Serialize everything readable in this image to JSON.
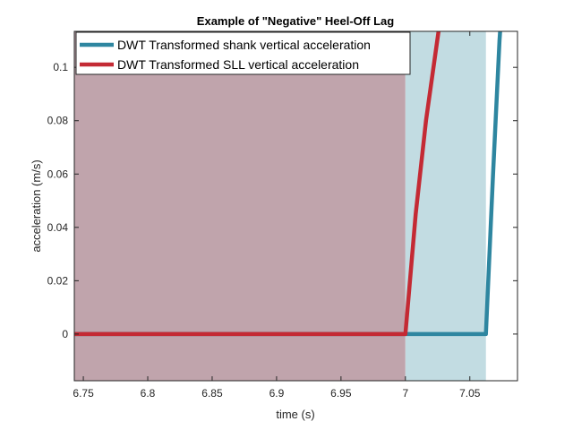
{
  "chart_data": {
    "type": "line",
    "title": "Example of \"Negative\" Heel-Off Lag",
    "xlabel": "time (s)",
    "ylabel": "acceleration (m/s)",
    "xlim": [
      6.743,
      7.087
    ],
    "ylim": [
      -0.0175,
      0.1135
    ],
    "xticks": [
      6.75,
      6.8,
      6.85,
      6.9,
      6.95,
      7,
      7.05
    ],
    "xtick_labels": [
      "6.75",
      "6.8",
      "6.85",
      "6.9",
      "6.95",
      "7",
      "7.05"
    ],
    "yticks": [
      0,
      0.02,
      0.04,
      0.06,
      0.08,
      0.1
    ],
    "ytick_labels": [
      "0",
      "0.02",
      "0.04",
      "0.06",
      "0.08",
      "0.1"
    ],
    "grid": false,
    "legend_position": "top-left",
    "shaded_regions": [
      {
        "x": [
          6.743,
          7.0
        ],
        "color": "#c0a4ac"
      },
      {
        "x": [
          7.0,
          7.0625
        ],
        "color": "#c2dce2"
      }
    ],
    "series": [
      {
        "name": "DWT Transformed shank vertical acceleration",
        "color": "#2e86a0",
        "x": [
          6.743,
          7.0625,
          7.068,
          7.073,
          7.08
        ],
        "y": [
          0,
          0,
          0.06,
          0.11,
          0.16
        ]
      },
      {
        "name": "DWT Transformed SLL vertical acceleration",
        "color": "#c42a34",
        "x": [
          6.743,
          7.0,
          7.008,
          7.016,
          7.027,
          7.034
        ],
        "y": [
          0,
          0,
          0.045,
          0.08,
          0.118,
          0.14
        ]
      }
    ]
  }
}
